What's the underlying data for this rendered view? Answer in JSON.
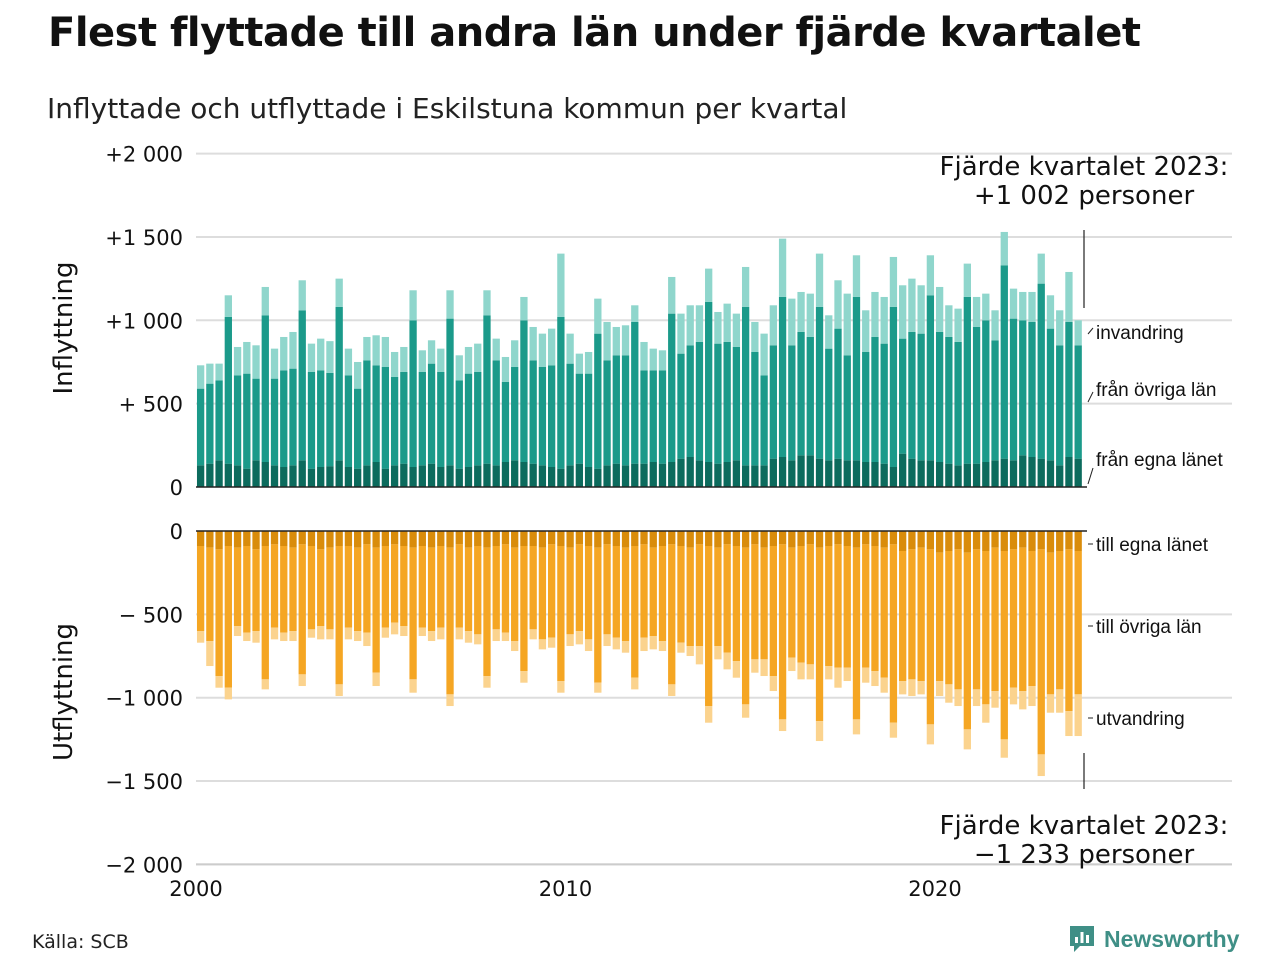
{
  "title": "Flest flyttade till andra län under fjärde kvartalet",
  "subtitle": "Inflyttade och utflyttade i Eskilstuna kommun per kvartal",
  "source": "Källa: SCB",
  "brand": "Newsworthy",
  "colors": {
    "egna": "#0c6b5d",
    "ovriga_in": "#1b9a8a",
    "invandring": "#8fd6cc",
    "egna_ut": "#d98c0b",
    "ovriga_ut": "#f5a623",
    "utvandring": "#fbd38e",
    "grid": "#dddddd",
    "brand": "#3f8f86"
  },
  "chart_data": {
    "type": "bar",
    "stacked": true,
    "x_start": {
      "year": 2000,
      "quarter": 1
    },
    "x_ticks": [
      "2000",
      "2010",
      "2020"
    ],
    "y_ticks_top": [
      {
        "value": 2000,
        "label": "+2 000"
      },
      {
        "value": 1500,
        "label": "+1 500"
      },
      {
        "value": 1000,
        "label": "+1 000"
      },
      {
        "value": 500,
        "label": "+  500"
      },
      {
        "value": 0,
        "label": "0"
      }
    ],
    "y_ticks_bottom": [
      {
        "value": 0,
        "label": "0"
      },
      {
        "value": -500,
        "label": "−  500"
      },
      {
        "value": -1000,
        "label": "−1 000"
      },
      {
        "value": -1500,
        "label": "−1 500"
      },
      {
        "value": -2000,
        "label": "−2 000"
      }
    ],
    "top_panel": {
      "ylabel": "Inflyttning",
      "ylim": [
        0,
        2000
      ],
      "series": [
        {
          "name": "från egna länet",
          "label": "från egna länet",
          "values": [
            130,
            140,
            160,
            140,
            130,
            110,
            160,
            150,
            130,
            120,
            130,
            160,
            110,
            120,
            125,
            160,
            120,
            110,
            130,
            150,
            110,
            130,
            140,
            120,
            130,
            140,
            120,
            130,
            110,
            120,
            130,
            140,
            130,
            150,
            160,
            150,
            140,
            130,
            120,
            110,
            130,
            140,
            120,
            110,
            130,
            140,
            130,
            140,
            140,
            150,
            140,
            150,
            170,
            180,
            160,
            150,
            140,
            150,
            160,
            130,
            130,
            130,
            170,
            180,
            160,
            190,
            190,
            170,
            160,
            170,
            160,
            160,
            150,
            150,
            140,
            120,
            200,
            170,
            160,
            160,
            150,
            140,
            130,
            140,
            140,
            150,
            160,
            170,
            160,
            190,
            180,
            170,
            160,
            130,
            180,
            170
          ]
        },
        {
          "name": "från övriga län",
          "label": "från övriga län",
          "values": [
            460,
            480,
            480,
            880,
            540,
            570,
            490,
            880,
            520,
            580,
            580,
            900,
            580,
            580,
            560,
            920,
            550,
            480,
            630,
            580,
            610,
            530,
            550,
            880,
            560,
            600,
            570,
            880,
            530,
            560,
            560,
            890,
            630,
            480,
            560,
            850,
            620,
            590,
            610,
            910,
            610,
            540,
            560,
            810,
            630,
            650,
            660,
            850,
            560,
            550,
            560,
            890,
            630,
            670,
            710,
            960,
            720,
            720,
            680,
            950,
            680,
            540,
            680,
            960,
            690,
            740,
            710,
            910,
            670,
            780,
            630,
            980,
            660,
            750,
            720,
            960,
            690,
            760,
            760,
            990,
            780,
            760,
            740,
            1000,
            820,
            850,
            720,
            1160,
            850,
            810,
            810,
            1050,
            790,
            720,
            810,
            680
          ]
        },
        {
          "name": "invandring",
          "label": "invandring",
          "values": [
            140,
            120,
            100,
            130,
            170,
            190,
            200,
            170,
            180,
            200,
            220,
            180,
            170,
            190,
            190,
            170,
            160,
            160,
            140,
            180,
            180,
            150,
            150,
            180,
            130,
            140,
            140,
            170,
            150,
            160,
            170,
            150,
            130,
            150,
            160,
            140,
            200,
            200,
            220,
            380,
            180,
            120,
            130,
            210,
            230,
            170,
            180,
            100,
            170,
            130,
            120,
            220,
            240,
            240,
            220,
            200,
            190,
            230,
            200,
            240,
            180,
            250,
            240,
            350,
            280,
            240,
            260,
            320,
            200,
            290,
            370,
            250,
            250,
            270,
            280,
            300,
            320,
            320,
            290,
            240,
            270,
            190,
            200,
            200,
            180,
            160,
            180,
            200,
            180,
            170,
            180,
            180,
            200,
            210,
            300,
            150
          ]
        }
      ]
    },
    "bottom_panel": {
      "ylabel": "Utflyttning",
      "ylim": [
        -2000,
        0
      ],
      "series": [
        {
          "name": "till egna länet",
          "label": "till egna länet",
          "values": [
            -90,
            -100,
            -110,
            -90,
            -100,
            -90,
            -110,
            -90,
            -80,
            -90,
            -100,
            -80,
            -90,
            -110,
            -100,
            -90,
            -90,
            -100,
            -80,
            -100,
            -90,
            -80,
            -90,
            -100,
            -90,
            -100,
            -90,
            -100,
            -80,
            -100,
            -90,
            -100,
            -90,
            -80,
            -100,
            -90,
            -90,
            -100,
            -80,
            -90,
            -100,
            -80,
            -90,
            -100,
            -80,
            -90,
            -100,
            -90,
            -80,
            -100,
            -90,
            -80,
            -90,
            -100,
            -80,
            -90,
            -100,
            -80,
            -90,
            -100,
            -80,
            -100,
            -90,
            -80,
            -100,
            -90,
            -80,
            -100,
            -90,
            -80,
            -90,
            -100,
            -80,
            -90,
            -100,
            -80,
            -120,
            -110,
            -100,
            -110,
            -130,
            -120,
            -110,
            -130,
            -110,
            -120,
            -100,
            -120,
            -110,
            -100,
            -120,
            -110,
            -130,
            -120,
            -110,
            -120
          ]
        },
        {
          "name": "till övriga län",
          "label": "till övriga län",
          "values": [
            -510,
            -560,
            -760,
            -850,
            -470,
            -520,
            -490,
            -800,
            -500,
            -520,
            -500,
            -780,
            -500,
            -460,
            -490,
            -830,
            -490,
            -500,
            -530,
            -750,
            -490,
            -470,
            -480,
            -790,
            -490,
            -500,
            -490,
            -880,
            -500,
            -500,
            -530,
            -770,
            -500,
            -530,
            -560,
            -750,
            -500,
            -550,
            -560,
            -810,
            -520,
            -520,
            -560,
            -810,
            -540,
            -550,
            -560,
            -790,
            -560,
            -530,
            -570,
            -840,
            -580,
            -590,
            -610,
            -960,
            -590,
            -650,
            -690,
            -940,
            -690,
            -670,
            -780,
            -1050,
            -660,
            -700,
            -720,
            -1040,
            -720,
            -740,
            -730,
            -1030,
            -740,
            -750,
            -780,
            -1070,
            -780,
            -780,
            -800,
            -1050,
            -770,
            -800,
            -840,
            -1060,
            -840,
            -920,
            -860,
            -1130,
            -830,
            -860,
            -810,
            -1230,
            -850,
            -830,
            -970,
            -860
          ]
        },
        {
          "name": "utvandring",
          "label": "utvandring",
          "values": [
            -70,
            -150,
            -70,
            -70,
            -60,
            -50,
            -70,
            -60,
            -70,
            -50,
            -60,
            -70,
            -50,
            -80,
            -60,
            -70,
            -70,
            -60,
            -80,
            -80,
            -60,
            -70,
            -60,
            -80,
            -50,
            -60,
            -70,
            -70,
            -70,
            -70,
            -60,
            -70,
            -70,
            -50,
            -60,
            -70,
            -60,
            -60,
            -60,
            -70,
            -70,
            -80,
            -70,
            -60,
            -70,
            -70,
            -70,
            -70,
            -80,
            -80,
            -60,
            -70,
            -60,
            -60,
            -110,
            -100,
            -80,
            -100,
            -100,
            -80,
            -80,
            -100,
            -90,
            -70,
            -80,
            -100,
            -90,
            -120,
            -80,
            -120,
            -80,
            -90,
            -90,
            -90,
            -90,
            -90,
            -80,
            -100,
            -80,
            -120,
            -90,
            -110,
            -100,
            -120,
            -100,
            -110,
            -100,
            -110,
            -100,
            -110,
            -120,
            -130,
            -110,
            -140,
            -150,
            -250
          ]
        }
      ]
    },
    "annotations": [
      {
        "panel": "top",
        "text_line1": "Fjärde kvartalet 2023:",
        "text_line2": "+1 002 personer"
      },
      {
        "panel": "bottom",
        "text_line1": "Fjärde kvartalet 2023:",
        "text_line2": "−1 233 personer"
      }
    ],
    "legend_placement": "right, direct labels",
    "grid": true
  }
}
